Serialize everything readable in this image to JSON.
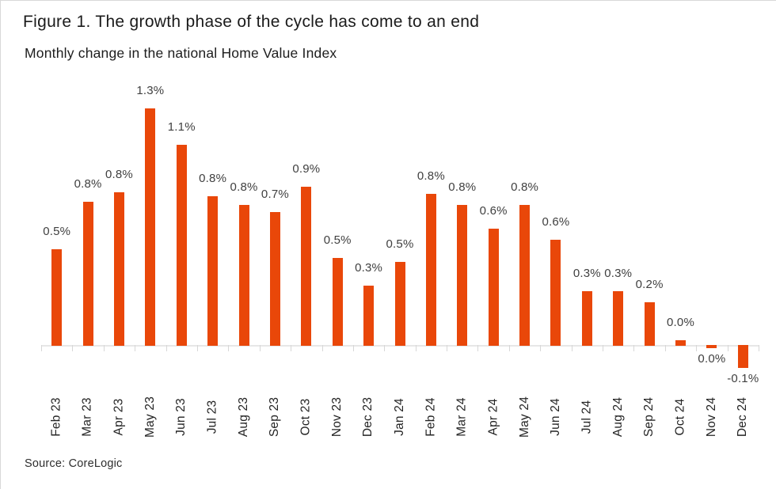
{
  "chart_data": {
    "type": "bar",
    "title": "Figure 1. The growth phase of the cycle has come to an end",
    "subtitle": "Monthly change in the national Home Value Index",
    "source_note": "Source: CoreLogic",
    "categories": [
      "Feb 23",
      "Mar 23",
      "Apr 23",
      "May 23",
      "Jun 23",
      "Jul 23",
      "Aug 23",
      "Sep 23",
      "Oct 23",
      "Nov 23",
      "Dec 23",
      "Jan 24",
      "Feb 24",
      "Mar 24",
      "Apr 24",
      "May 24",
      "Jun 24",
      "Jul 24",
      "Aug 24",
      "Sep 24",
      "Oct 24",
      "Nov 24",
      "Dec 24"
    ],
    "values": [
      0.53,
      0.79,
      0.84,
      1.3,
      1.1,
      0.82,
      0.77,
      0.73,
      0.87,
      0.48,
      0.33,
      0.46,
      0.83,
      0.77,
      0.64,
      0.77,
      0.58,
      0.3,
      0.3,
      0.24,
      0.03,
      -0.015,
      -0.12
    ],
    "value_labels": [
      "0.5%",
      "0.8%",
      "0.8%",
      "1.3%",
      "1.1%",
      "0.8%",
      "0.8%",
      "0.7%",
      "0.9%",
      "0.5%",
      "0.3%",
      "0.5%",
      "0.8%",
      "0.8%",
      "0.6%",
      "0.8%",
      "0.6%",
      "0.3%",
      "0.3%",
      "0.2%",
      "0.0%",
      "0.0%",
      "-0.1%"
    ],
    "xlabel": "",
    "ylabel": "",
    "ylim": [
      -0.15,
      1.35
    ],
    "grid": false,
    "legend": "none",
    "y_axis_visible": false,
    "x_label_rotation_deg": 90,
    "value_label_position": "above bar (below bar for negative values)",
    "bar_color": "#E94709",
    "axis_color": "#E7E7E7",
    "tick_color": "#D7D7D7",
    "value_label_color": "#404040"
  }
}
